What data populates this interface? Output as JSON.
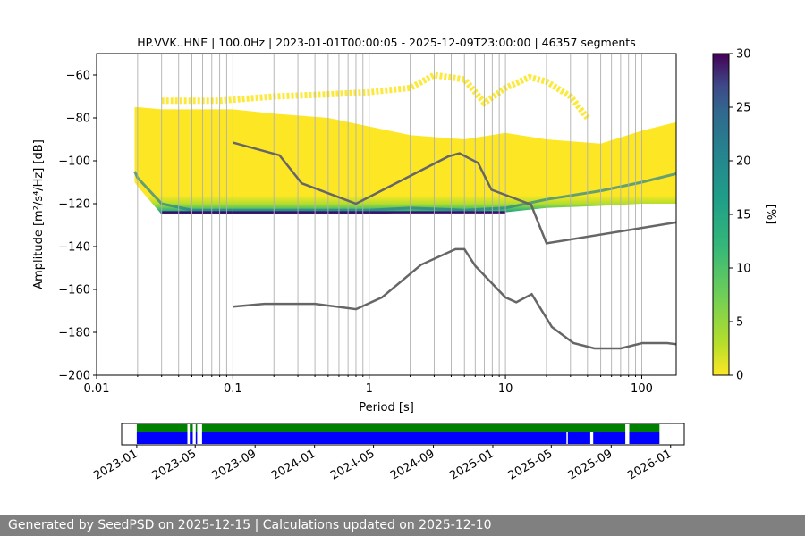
{
  "chart_data": [
    {
      "type": "heatmap",
      "title": "HP.VVK..HNE | 100.0Hz | 2023-01-01T00:00:05 - 2025-12-09T23:00:00 | 46357 segments",
      "xlabel": "Period [s]",
      "ylabel": "Amplitude [m²/s⁴/Hz] [dB]",
      "xscale": "log",
      "xlim": [
        0.01,
        179
      ],
      "ylim": [
        -200,
        -50
      ],
      "grid": "vertical-only",
      "xticks": [
        {
          "value": 0.01,
          "label": "0.01"
        },
        {
          "value": 0.1,
          "label": "0.1"
        },
        {
          "value": 1,
          "label": "1"
        },
        {
          "value": 10,
          "label": "10"
        },
        {
          "value": 100,
          "label": "100"
        }
      ],
      "yticks": [
        {
          "value": -60,
          "label": "−60"
        },
        {
          "value": -80,
          "label": "−80"
        },
        {
          "value": -100,
          "label": "−100"
        },
        {
          "value": -120,
          "label": "−120"
        },
        {
          "value": -140,
          "label": "−140"
        },
        {
          "value": -160,
          "label": "−160"
        },
        {
          "value": -180,
          "label": "−180"
        },
        {
          "value": -200,
          "label": "−200"
        }
      ],
      "colorbar": {
        "label": "[%]",
        "range": [
          0,
          30
        ],
        "colormap": "viridis_r",
        "ticks": [
          {
            "value": 0,
            "label": "0"
          },
          {
            "value": 5,
            "label": "5"
          },
          {
            "value": 10,
            "label": "10"
          },
          {
            "value": 15,
            "label": "15"
          },
          {
            "value": 20,
            "label": "20"
          },
          {
            "value": 25,
            "label": "25"
          },
          {
            "value": 30,
            "label": "30"
          }
        ]
      },
      "density_band": {
        "period": [
          0.019,
          0.02,
          0.03,
          0.05,
          0.1,
          0.2,
          0.5,
          1,
          2,
          5,
          10,
          20,
          50,
          100,
          179
        ],
        "upper_db": [
          -75,
          -75,
          -76,
          -76,
          -76,
          -78,
          -80,
          -84,
          -88,
          -90,
          -87,
          -90,
          -92,
          -86,
          -82
        ],
        "lower_db": [
          -110,
          -112,
          -125,
          -125,
          -125,
          -125,
          -125,
          -125,
          -124,
          -124,
          -124,
          -122,
          -121,
          -120,
          -120
        ],
        "mode_db": [
          -105,
          -108,
          -120,
          -123,
          -123,
          -123,
          -123,
          -123,
          -122,
          -123,
          -122,
          -118,
          -114,
          -110,
          -106
        ]
      },
      "sparse_upper": {
        "period": [
          0.03,
          0.08,
          0.2,
          0.5,
          1,
          2,
          3,
          5,
          7,
          10,
          15,
          20,
          30,
          40
        ],
        "db": [
          -72,
          -72,
          -70,
          -69,
          -68,
          -66,
          -60,
          -62,
          -73,
          -66,
          -61,
          -63,
          -70,
          -80
        ]
      },
      "series": [
        {
          "name": "",
          "color": "#666666",
          "x": [
            0.1,
            0.22,
            0.32,
            0.8,
            3.8,
            4.6,
            6.3,
            7.9,
            15.4,
            20,
            179
          ],
          "y": [
            -91.5,
            -97.4,
            -110.5,
            -120,
            -98,
            -96.5,
            -101,
            -113.5,
            -120.4,
            -138.5,
            -128.7
          ]
        },
        {
          "name": "",
          "color": "#666666",
          "x": [
            0.1,
            0.17,
            0.4,
            0.8,
            1.24,
            2.4,
            4.3,
            5.0,
            6.0,
            10,
            12,
            15.6,
            21.9,
            31.6,
            45,
            70,
            101,
            154,
            179
          ],
          "y": [
            -168,
            -166.7,
            -166.7,
            -169.2,
            -163.7,
            -148.5,
            -141.2,
            -141.2,
            -149,
            -163.7,
            -166,
            -162.2,
            -177.5,
            -185,
            -187.5,
            -187.5,
            -185,
            -185,
            -185.5
          ]
        }
      ]
    },
    {
      "type": "bar",
      "title": "",
      "xlabel": "",
      "ylabel": "",
      "xaxis": "date",
      "xlim": [
        "2022-12-01",
        "2026-01-29"
      ],
      "xticks": [
        "2023-01",
        "2023-05",
        "2023-09",
        "2024-01",
        "2024-05",
        "2024-09",
        "2025-01",
        "2025-05",
        "2025-09",
        "2026-01"
      ],
      "series": [
        {
          "name": "",
          "color": "#008000",
          "segments": [
            [
              "2023-01-01",
              "2023-04-15"
            ],
            [
              "2023-04-20",
              "2023-04-26"
            ],
            [
              "2023-05-02",
              "2023-05-05"
            ],
            [
              "2023-05-15",
              "2025-09-30"
            ],
            [
              "2025-10-08",
              "2025-12-09"
            ]
          ]
        },
        {
          "name": "",
          "color": "#0000ff",
          "segments": [
            [
              "2023-01-01",
              "2023-04-15"
            ],
            [
              "2023-04-20",
              "2023-04-26"
            ],
            [
              "2023-05-02",
              "2023-05-05"
            ],
            [
              "2023-05-15",
              "2025-06-01"
            ],
            [
              "2025-06-04",
              "2025-07-20"
            ],
            [
              "2025-07-26",
              "2025-09-30"
            ],
            [
              "2025-10-08",
              "2025-12-09"
            ]
          ]
        }
      ]
    }
  ],
  "footer": {
    "text": "Generated by SeedPSD on 2025-12-15 | Calculations updated on 2025-12-10"
  }
}
